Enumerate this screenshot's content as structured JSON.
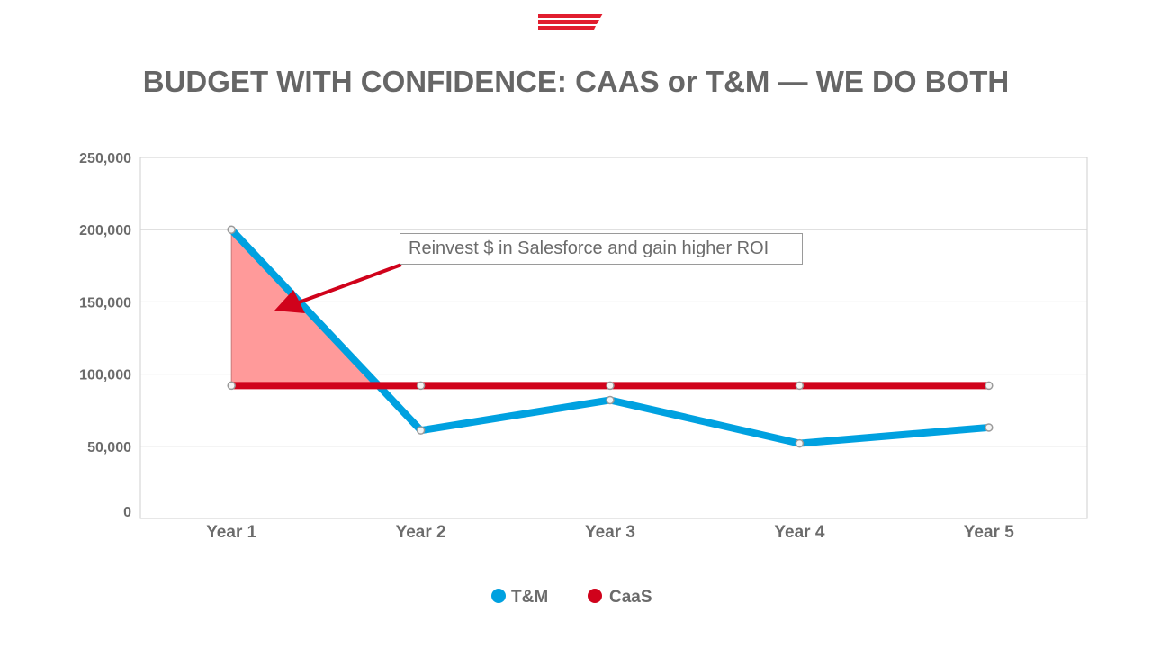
{
  "title": "BUDGET WITH CONFIDENCE: CAAS or T&M — WE DO BOTH",
  "annotation": "Reinvest $ in Salesforce and gain higher ROI",
  "colors": {
    "tm": "#00A1E0",
    "caas": "#D0021B",
    "shade": "#FF9A9A",
    "logo": "#E11D2E"
  },
  "legend": [
    {
      "label": "T&M",
      "color": "#00A1E0"
    },
    {
      "label": "CaaS",
      "color": "#D0021B"
    }
  ],
  "chart_data": {
    "type": "line",
    "categories": [
      "Year 1",
      "Year 2",
      "Year 3",
      "Year 4",
      "Year 5"
    ],
    "series": [
      {
        "name": "T&M",
        "values": [
          200000,
          61000,
          82000,
          52000,
          63000
        ]
      },
      {
        "name": "CaaS",
        "values": [
          92000,
          92000,
          92000,
          92000,
          92000
        ]
      }
    ],
    "yticks": [
      "0",
      "50,000",
      "100,000",
      "150,000",
      "200,000",
      "250,000"
    ],
    "ylim": [
      0,
      250000
    ],
    "grid": true,
    "legend_position": "bottom",
    "shaded_region": "area between T&M and CaaS where T&M exceeds CaaS"
  }
}
